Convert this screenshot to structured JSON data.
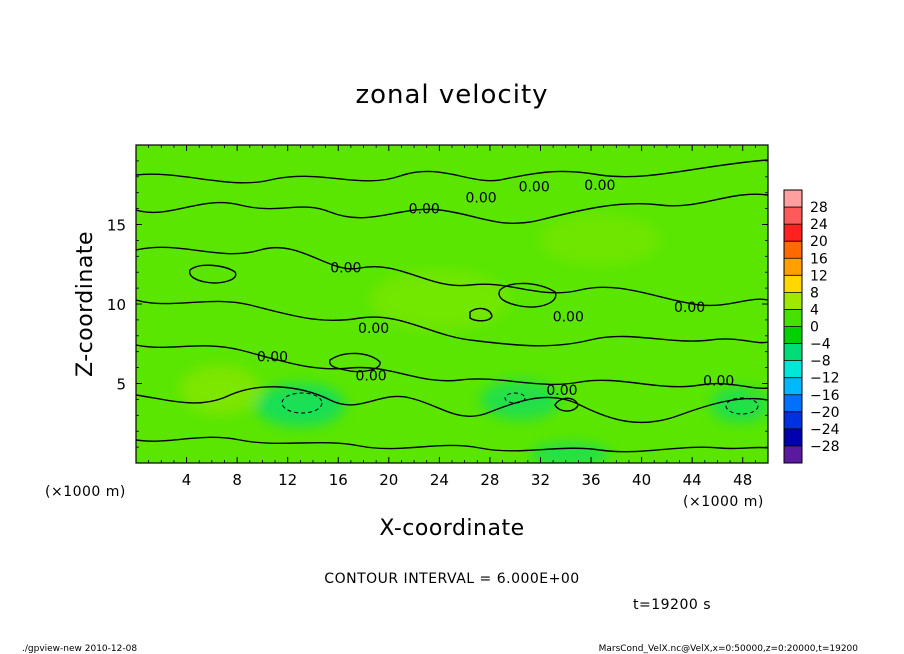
{
  "chart_data": {
    "type": "heatmap",
    "title": "zonal velocity",
    "xlabel": "X-coordinate",
    "ylabel": "Z-coordinate",
    "x_unit": "(×1000 m)",
    "y_unit": "(×1000 m)",
    "xlim": [
      0,
      50
    ],
    "ylim": [
      0,
      20
    ],
    "x_ticks": [
      4,
      8,
      12,
      16,
      20,
      24,
      28,
      32,
      36,
      40,
      44,
      48
    ],
    "y_ticks": [
      5,
      10,
      15
    ],
    "colorbar": {
      "ticks": [
        28,
        24,
        20,
        16,
        12,
        8,
        4,
        0,
        -4,
        -8,
        -12,
        -16,
        -20,
        -24,
        -28
      ],
      "tick_labels": [
        "28",
        "24",
        "20",
        "16",
        "12",
        "8",
        "4",
        "0",
        "−4",
        "−8",
        "−12",
        "−16",
        "−20",
        "−24",
        "−28"
      ],
      "colors": [
        "#ff9f9f",
        "#ff5a5a",
        "#ff2020",
        "#ff6a00",
        "#ffa000",
        "#ffd800",
        "#a0e800",
        "#48e000",
        "#00d200",
        "#00dc78",
        "#00e6d8",
        "#00b8ff",
        "#0070ff",
        "#0030e0",
        "#0000b0",
        "#5a1aa0"
      ]
    },
    "contour_interval": "CONTOUR INTERVAL = 6.000E+00",
    "contour_labels": [
      {
        "text": "0.00",
        "x": 31.5,
        "z": 17.4
      },
      {
        "text": "0.00",
        "x": 36.7,
        "z": 17.5
      },
      {
        "text": "0.00",
        "x": 22.8,
        "z": 16.0
      },
      {
        "text": "0.00",
        "x": 27.3,
        "z": 16.7
      },
      {
        "text": "0.00",
        "x": 16.6,
        "z": 12.3
      },
      {
        "text": "0.00",
        "x": 18.8,
        "z": 8.5
      },
      {
        "text": "0.00",
        "x": 10.8,
        "z": 6.7
      },
      {
        "text": "0.00",
        "x": 18.6,
        "z": 5.5
      },
      {
        "text": "0.00",
        "x": 33.7,
        "z": 4.6
      },
      {
        "text": "0.00",
        "x": 34.2,
        "z": 9.2
      },
      {
        "text": "0.00",
        "x": 43.8,
        "z": 9.8
      },
      {
        "text": "0.00",
        "x": 46.1,
        "z": 5.2
      }
    ]
  },
  "annotations": {
    "time": "t=19200 s",
    "footer_left": "./gpview-new   2010-12-08",
    "footer_right": "MarsCond_VelX.nc@VelX,x=0:50000,z=0:20000,t=19200"
  }
}
